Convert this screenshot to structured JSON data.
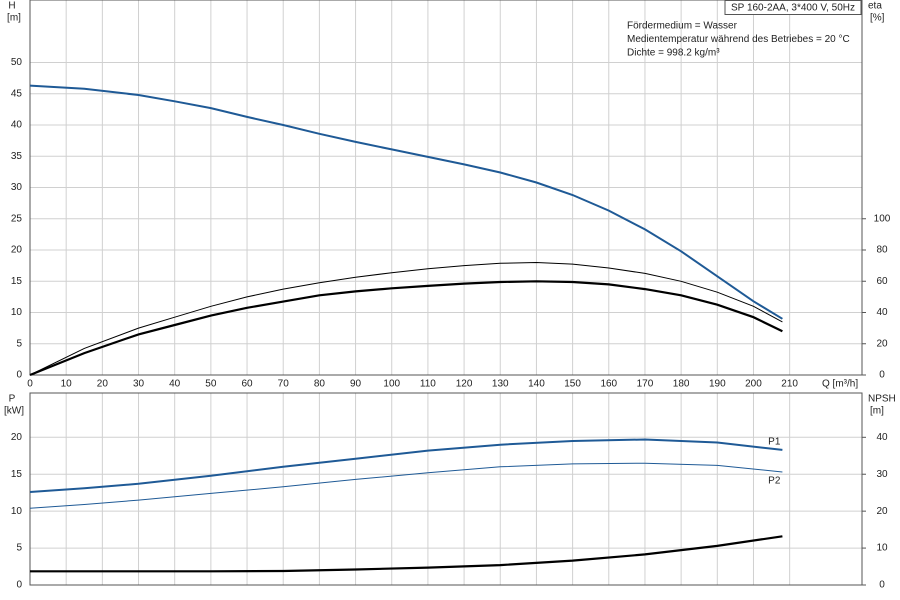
{
  "chart_data": [
    {
      "type": "line",
      "title": "SP 160-2AA, 3*400 V, 50Hz",
      "notes": [
        "Fördermedium = Wasser",
        "Medientemperatur während des Betriebes = 20 °C",
        "Dichte = 998.2 kg/m³"
      ],
      "ylabel": "H",
      "yunit": "[m]",
      "y2label": "eta",
      "y2unit": "[%]",
      "xlabel": "Q [m³/h]",
      "x": [
        0,
        15,
        30,
        40,
        50,
        60,
        70,
        80,
        90,
        100,
        110,
        120,
        130,
        140,
        150,
        160,
        170,
        180,
        190,
        200,
        208
      ],
      "series": [
        {
          "color": "#1f5a96",
          "linewidth": 2,
          "values": [
            46.3,
            45.8,
            44.8,
            43.8,
            42.7,
            41.3,
            40,
            38.6,
            37.3,
            36.1,
            34.9,
            33.7,
            32.4,
            30.8,
            28.8,
            26.3,
            23.3,
            19.8,
            15.8,
            11.8,
            9.0
          ]
        },
        {
          "color": "#000000",
          "linewidth": 1,
          "axis": "y2",
          "values": [
            0,
            17,
            30,
            37,
            44,
            50,
            55,
            59,
            62.5,
            65.5,
            68,
            70,
            71.5,
            72,
            71,
            68.5,
            65,
            60,
            53,
            44,
            34
          ]
        },
        {
          "color": "#000000",
          "linewidth": 2.2,
          "axis": "y2",
          "values": [
            0,
            14,
            26,
            32,
            38,
            43,
            47,
            51,
            53.5,
            55.5,
            57,
            58.5,
            59.5,
            60,
            59.5,
            58,
            55,
            51,
            45,
            37,
            28
          ]
        }
      ],
      "xlim": [
        0,
        230
      ],
      "xticks": [
        0,
        10,
        20,
        30,
        40,
        50,
        60,
        70,
        80,
        90,
        100,
        110,
        120,
        130,
        140,
        150,
        160,
        170,
        180,
        190,
        200,
        210
      ],
      "ylim": [
        0,
        60
      ],
      "yticks": [
        0,
        5,
        10,
        15,
        20,
        25,
        30,
        35,
        40,
        45,
        50
      ],
      "y2lim": [
        0,
        240
      ],
      "y2ticks": [
        0,
        20,
        40,
        60,
        80,
        100
      ],
      "grid": true
    },
    {
      "type": "line",
      "ylabel": "P",
      "yunit": "[kW]",
      "y2label": "NPSH",
      "y2unit": "[m]",
      "x": [
        0,
        15,
        30,
        50,
        70,
        90,
        110,
        130,
        150,
        170,
        190,
        208
      ],
      "series": [
        {
          "name": "P1",
          "color": "#1f5a96",
          "linewidth": 2,
          "values": [
            12.6,
            13.1,
            13.7,
            14.8,
            16,
            17.1,
            18.2,
            19,
            19.5,
            19.7,
            19.3,
            18.3
          ]
        },
        {
          "name": "P2",
          "color": "#1f5a96",
          "linewidth": 1,
          "values": [
            10.4,
            10.9,
            11.5,
            12.4,
            13.3,
            14.3,
            15.2,
            16,
            16.4,
            16.5,
            16.2,
            15.3
          ]
        },
        {
          "color": "#000000",
          "linewidth": 2.2,
          "axis": "y2",
          "values": [
            3.7,
            3.7,
            3.7,
            3.7,
            3.8,
            4.2,
            4.7,
            5.4,
            6.6,
            8.3,
            10.6,
            13.2
          ]
        }
      ],
      "xlim": [
        0,
        230
      ],
      "ylim": [
        0,
        26
      ],
      "yticks": [
        0,
        5,
        10,
        15,
        20
      ],
      "y2lim": [
        0,
        52
      ],
      "y2ticks": [
        0,
        10,
        20,
        30,
        40
      ],
      "grid": true
    }
  ]
}
